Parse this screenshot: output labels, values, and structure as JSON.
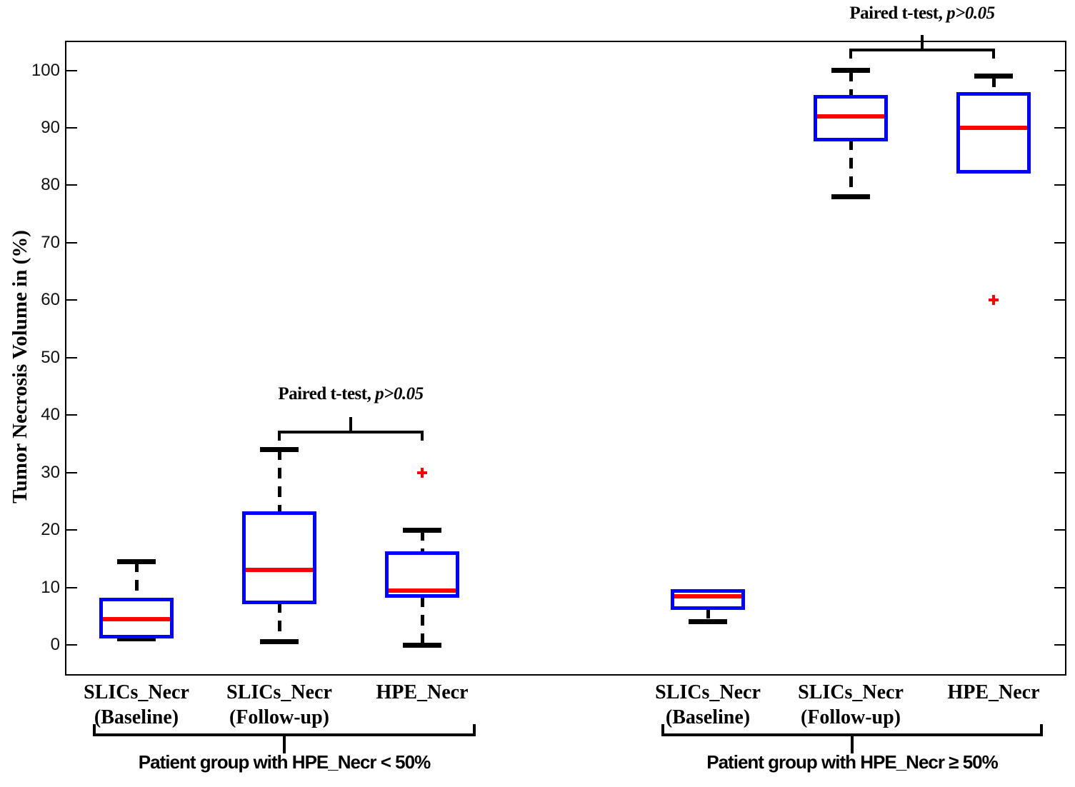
{
  "chart_data": {
    "type": "boxplot",
    "title": "",
    "ylabel": "Tumor Necrosis Volume in (%)",
    "xlabel": "",
    "ylim": [
      -5.3,
      105.2
    ],
    "yticks": [
      0,
      10,
      20,
      30,
      40,
      50,
      60,
      70,
      80,
      90,
      100
    ],
    "grid": "off",
    "colors": {
      "box_edge": "#0000ff",
      "median": "#ff0000",
      "whisker": "#000000",
      "outlier": "#ff0000",
      "axis": "#000000",
      "background": "#ffffff"
    },
    "boxes": [
      {
        "label_lines": [
          "SLICs_Necr",
          "(Baseline)"
        ],
        "group": 0,
        "whisker_low": 1,
        "q1": 1.5,
        "median": 4.5,
        "q3": 8,
        "whisker_high": 14.5,
        "outliers": []
      },
      {
        "label_lines": [
          "SLICs_Necr",
          "(Follow-up)"
        ],
        "group": 0,
        "whisker_low": 0.5,
        "q1": 7.5,
        "median": 13,
        "q3": 23,
        "whisker_high": 34,
        "outliers": []
      },
      {
        "label_lines": [
          "HPE_Necr"
        ],
        "group": 0,
        "whisker_low": 0,
        "q1": 8.5,
        "median": 9.5,
        "q3": 16,
        "whisker_high": 20,
        "outliers": [
          30
        ]
      },
      {
        "label_lines": [
          "SLICs_Necr",
          "(Baseline)"
        ],
        "group": 1,
        "whisker_low": 4,
        "q1": 6.5,
        "median": 8.5,
        "q3": 9.5,
        "whisker_high": null,
        "outliers": []
      },
      {
        "label_lines": [
          "SLICs_Necr",
          "(Follow-up)"
        ],
        "group": 1,
        "whisker_low": 78,
        "q1": 88,
        "median": 92,
        "q3": 95.5,
        "whisker_high": 100,
        "outliers": []
      },
      {
        "label_lines": [
          "HPE_Necr"
        ],
        "group": 1,
        "whisker_low": null,
        "q1": 82.5,
        "median": 90,
        "q3": 96,
        "whisker_high": 99,
        "outliers": [
          60
        ]
      }
    ],
    "groups": [
      {
        "label": "Patient group with HPE_Necr < 50%"
      },
      {
        "label": "Patient group with HPE_Necr ≥ 50%"
      }
    ],
    "significance_annotations": [
      {
        "label": "Paired t-test, ",
        "label_italic": "p>0.05",
        "between_boxes": [
          1,
          2
        ]
      },
      {
        "label": "Paired t-test, ",
        "label_italic": "p>0.05",
        "between_boxes": [
          4,
          5
        ]
      }
    ]
  }
}
